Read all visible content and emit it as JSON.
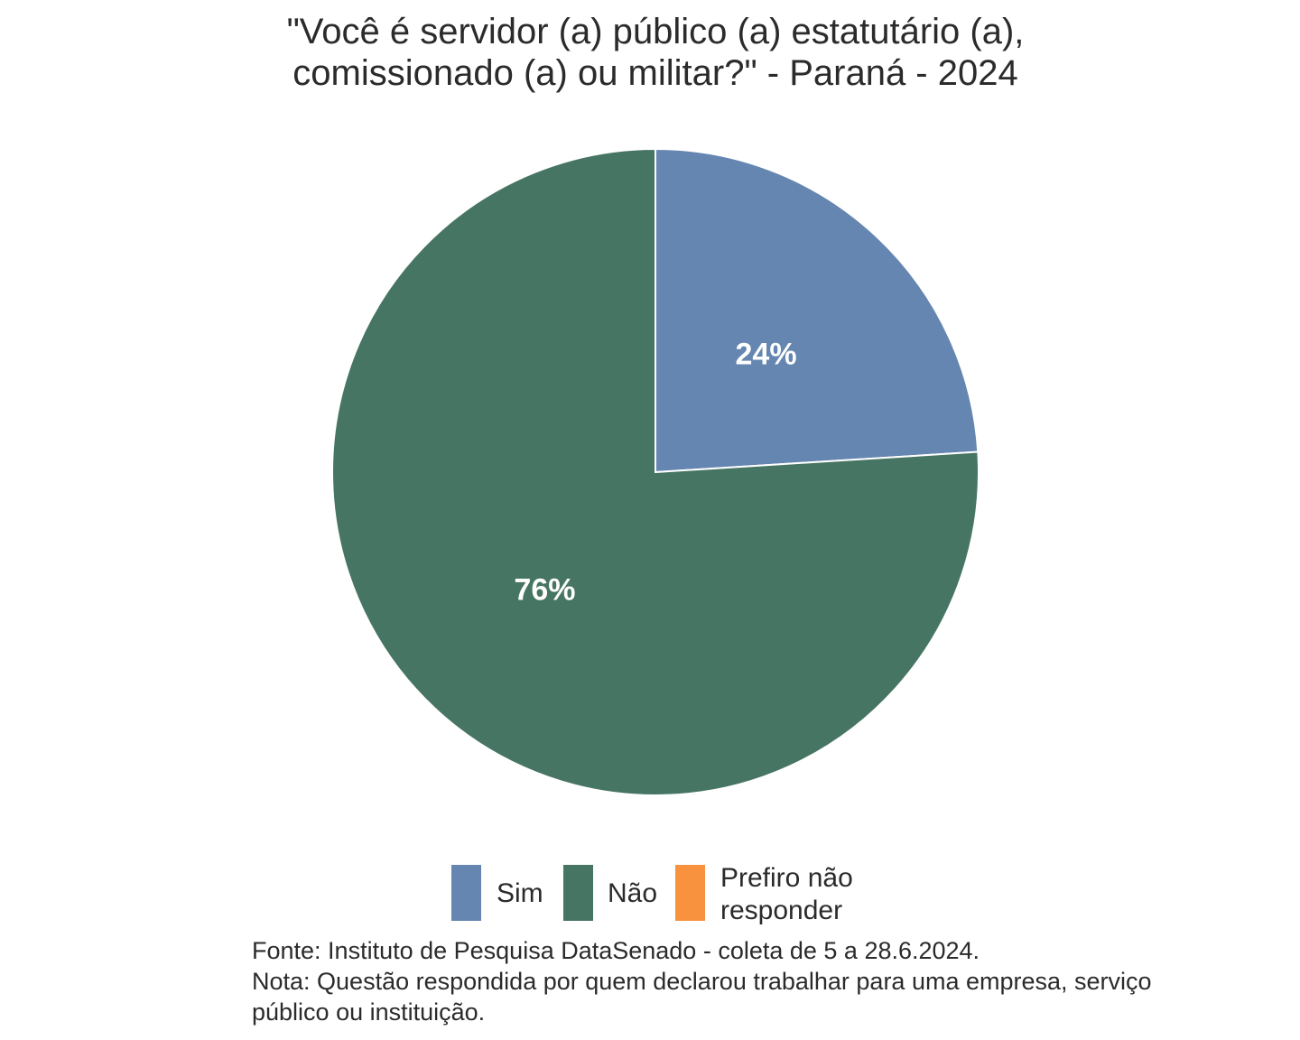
{
  "chart_data": {
    "type": "pie",
    "title": {
      "line1": "\"Você é servidor (a) público (a) estatutário (a),",
      "line2": "comissionado (a) ou militar?\" - Paraná - 2024"
    },
    "slices": [
      {
        "name": "Sim",
        "value": 24,
        "label": "24%",
        "color": "#6586b0"
      },
      {
        "name": "Não",
        "value": 76,
        "label": "76%",
        "color": "#467563"
      },
      {
        "name": "Prefiro não responder",
        "value": 0,
        "label": "",
        "color": "#f8923f"
      }
    ],
    "legend": {
      "placement": "bottom",
      "items": [
        {
          "label": "Sim",
          "color": "#6586b0"
        },
        {
          "label": "Não",
          "color": "#467563"
        },
        {
          "label_line1": "Prefiro não",
          "label_line2": "responder",
          "color": "#f8923f"
        }
      ]
    },
    "caption": {
      "source": "Fonte: Instituto de Pesquisa DataSenado - coleta de 5 a 28.6.2024.",
      "note_line1": "Nota: Questão respondida por quem declarou trabalhar para uma empresa, serviço",
      "note_line2": "público ou instituição."
    }
  }
}
